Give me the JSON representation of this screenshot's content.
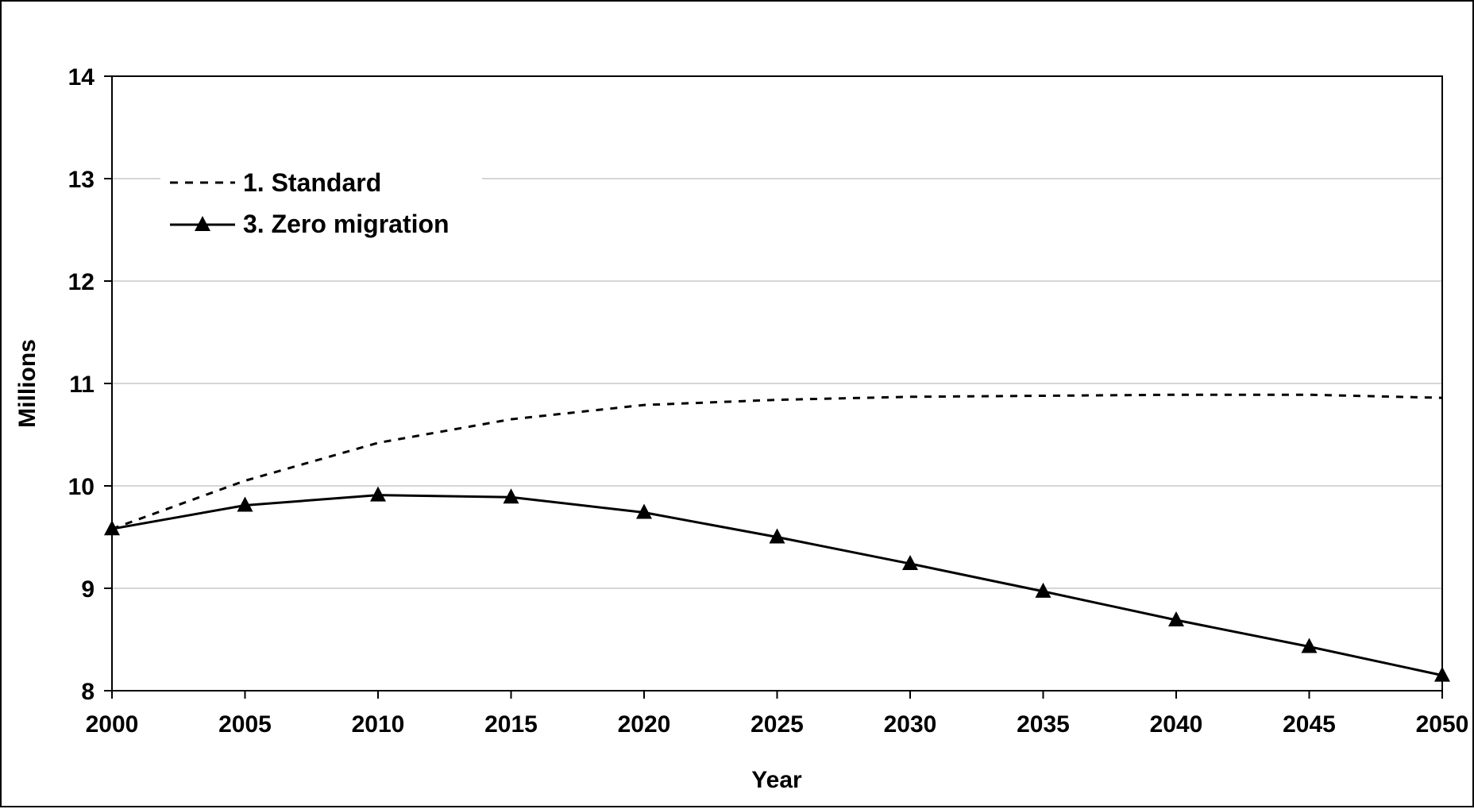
{
  "chart_data": {
    "type": "line",
    "xlabel": "Year",
    "ylabel": "Millions",
    "xlim": [
      2000,
      2050
    ],
    "ylim": [
      8,
      14
    ],
    "x_ticks": [
      "2000",
      "2005",
      "2010",
      "2015",
      "2020",
      "2025",
      "2030",
      "2035",
      "2040",
      "2045",
      "2050"
    ],
    "y_ticks": [
      "8",
      "9",
      "10",
      "11",
      "12",
      "13",
      "14"
    ],
    "grid": "horizontal",
    "legend_position": "top-left",
    "series": [
      {
        "name": "1. Standard",
        "style": "dashed",
        "color": "#000000",
        "x": [
          2000,
          2005,
          2010,
          2015,
          2020,
          2025,
          2030,
          2035,
          2040,
          2045,
          2050
        ],
        "y": [
          9.58,
          10.05,
          10.42,
          10.65,
          10.79,
          10.84,
          10.87,
          10.88,
          10.89,
          10.89,
          10.86
        ]
      },
      {
        "name": "3. Zero migration",
        "style": "solid",
        "marker": "triangle",
        "color": "#000000",
        "x": [
          2000,
          2005,
          2010,
          2015,
          2020,
          2025,
          2030,
          2035,
          2040,
          2045,
          2050
        ],
        "y": [
          9.58,
          9.81,
          9.91,
          9.89,
          9.74,
          9.5,
          9.24,
          8.97,
          8.69,
          8.43,
          8.15
        ]
      }
    ]
  }
}
